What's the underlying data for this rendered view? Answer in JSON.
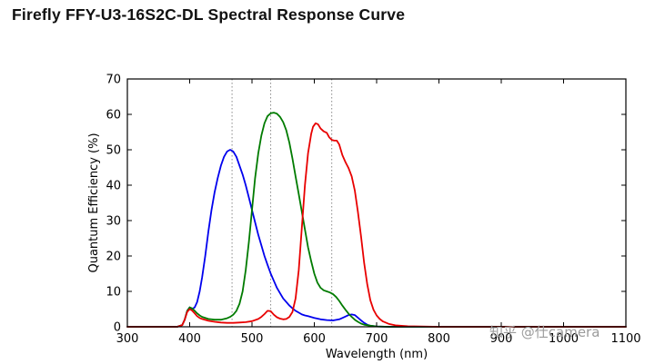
{
  "page": {
    "watermark": "知乎 @仕camera"
  },
  "chart_data": {
    "type": "line",
    "title": "Firefly FFY-U3-16S2C-DL Spectral Response Curve",
    "xlabel": "Wavelength (nm)",
    "ylabel": "Quantum Efficiency (%)",
    "xlim": [
      300,
      1100
    ],
    "ylim": [
      0,
      70
    ],
    "xticks": [
      300,
      400,
      500,
      600,
      700,
      800,
      900,
      1000,
      1100
    ],
    "yticks": [
      0,
      10,
      20,
      30,
      40,
      50,
      60,
      70
    ],
    "grid": false,
    "legend_position": "none",
    "marker_lines_x": [
      468,
      530,
      628
    ],
    "series": [
      {
        "name": "blue",
        "color": "#0000ee",
        "points": [
          [
            300,
            0
          ],
          [
            380,
            0
          ],
          [
            388,
            0.5
          ],
          [
            392,
            2
          ],
          [
            396,
            4.5
          ],
          [
            400,
            5.5
          ],
          [
            404,
            5
          ],
          [
            408,
            5.5
          ],
          [
            412,
            7
          ],
          [
            416,
            10
          ],
          [
            420,
            14
          ],
          [
            425,
            20
          ],
          [
            430,
            27
          ],
          [
            435,
            33
          ],
          [
            440,
            38
          ],
          [
            445,
            42
          ],
          [
            450,
            45.5
          ],
          [
            455,
            48
          ],
          [
            460,
            49.5
          ],
          [
            465,
            50
          ],
          [
            470,
            49.5
          ],
          [
            475,
            48
          ],
          [
            480,
            45.5
          ],
          [
            485,
            43
          ],
          [
            490,
            40
          ],
          [
            495,
            36.5
          ],
          [
            500,
            33
          ],
          [
            505,
            29.5
          ],
          [
            510,
            26
          ],
          [
            515,
            23
          ],
          [
            520,
            20
          ],
          [
            525,
            17.5
          ],
          [
            530,
            15
          ],
          [
            535,
            13
          ],
          [
            540,
            11
          ],
          [
            545,
            9.5
          ],
          [
            550,
            8
          ],
          [
            555,
            7
          ],
          [
            560,
            6
          ],
          [
            565,
            5.2
          ],
          [
            570,
            4.5
          ],
          [
            575,
            4
          ],
          [
            580,
            3.5
          ],
          [
            585,
            3.2
          ],
          [
            590,
            3
          ],
          [
            600,
            2.5
          ],
          [
            610,
            2.1
          ],
          [
            620,
            1.9
          ],
          [
            630,
            1.8
          ],
          [
            640,
            2.1
          ],
          [
            645,
            2.5
          ],
          [
            650,
            2.9
          ],
          [
            655,
            3.3
          ],
          [
            660,
            3.5
          ],
          [
            665,
            3.3
          ],
          [
            670,
            2.6
          ],
          [
            675,
            1.8
          ],
          [
            680,
            1.1
          ],
          [
            685,
            0.6
          ],
          [
            690,
            0.3
          ],
          [
            700,
            0.1
          ],
          [
            720,
            0
          ],
          [
            1100,
            0
          ]
        ]
      },
      {
        "name": "green",
        "color": "#007b00",
        "points": [
          [
            300,
            0
          ],
          [
            380,
            0
          ],
          [
            388,
            0.5
          ],
          [
            392,
            2
          ],
          [
            396,
            4.5
          ],
          [
            400,
            5.5
          ],
          [
            404,
            5.2
          ],
          [
            408,
            4.5
          ],
          [
            412,
            3.8
          ],
          [
            416,
            3.2
          ],
          [
            420,
            2.8
          ],
          [
            430,
            2.2
          ],
          [
            440,
            2
          ],
          [
            450,
            2
          ],
          [
            460,
            2.4
          ],
          [
            465,
            2.8
          ],
          [
            470,
            3.4
          ],
          [
            475,
            4.5
          ],
          [
            480,
            6.5
          ],
          [
            485,
            10
          ],
          [
            490,
            16
          ],
          [
            495,
            24
          ],
          [
            500,
            33
          ],
          [
            505,
            42
          ],
          [
            510,
            49
          ],
          [
            515,
            54
          ],
          [
            520,
            57.5
          ],
          [
            525,
            59.5
          ],
          [
            530,
            60.3
          ],
          [
            535,
            60.5
          ],
          [
            540,
            60.2
          ],
          [
            545,
            59.3
          ],
          [
            550,
            57.8
          ],
          [
            555,
            55.5
          ],
          [
            560,
            52
          ],
          [
            565,
            47.5
          ],
          [
            570,
            42.5
          ],
          [
            575,
            37.5
          ],
          [
            580,
            32.5
          ],
          [
            585,
            27.5
          ],
          [
            590,
            22.5
          ],
          [
            595,
            18.5
          ],
          [
            600,
            15
          ],
          [
            605,
            12.5
          ],
          [
            610,
            11
          ],
          [
            615,
            10.3
          ],
          [
            620,
            10
          ],
          [
            625,
            9.7
          ],
          [
            630,
            9.2
          ],
          [
            635,
            8.4
          ],
          [
            640,
            7.3
          ],
          [
            645,
            6
          ],
          [
            650,
            4.8
          ],
          [
            655,
            3.7
          ],
          [
            660,
            2.8
          ],
          [
            665,
            2
          ],
          [
            670,
            1.4
          ],
          [
            675,
            0.9
          ],
          [
            680,
            0.6
          ],
          [
            690,
            0.3
          ],
          [
            700,
            0.1
          ],
          [
            720,
            0
          ],
          [
            1100,
            0
          ]
        ]
      },
      {
        "name": "red",
        "color": "#e80000",
        "points": [
          [
            300,
            0
          ],
          [
            380,
            0
          ],
          [
            388,
            0.5
          ],
          [
            392,
            2
          ],
          [
            396,
            4.2
          ],
          [
            400,
            5
          ],
          [
            404,
            4.6
          ],
          [
            408,
            3.8
          ],
          [
            412,
            3
          ],
          [
            416,
            2.5
          ],
          [
            420,
            2.2
          ],
          [
            430,
            1.7
          ],
          [
            440,
            1.4
          ],
          [
            450,
            1.2
          ],
          [
            460,
            1.1
          ],
          [
            470,
            1.1
          ],
          [
            480,
            1.2
          ],
          [
            490,
            1.3
          ],
          [
            500,
            1.6
          ],
          [
            510,
            2.2
          ],
          [
            515,
            2.8
          ],
          [
            520,
            3.6
          ],
          [
            525,
            4.5
          ],
          [
            530,
            4.4
          ],
          [
            535,
            3.4
          ],
          [
            540,
            2.7
          ],
          [
            545,
            2.3
          ],
          [
            550,
            2.1
          ],
          [
            555,
            2.2
          ],
          [
            560,
            2.8
          ],
          [
            565,
            4.2
          ],
          [
            570,
            8
          ],
          [
            575,
            16
          ],
          [
            580,
            28
          ],
          [
            585,
            40
          ],
          [
            590,
            49
          ],
          [
            595,
            54.5
          ],
          [
            598,
            56.5
          ],
          [
            602,
            57.5
          ],
          [
            606,
            57.2
          ],
          [
            610,
            56
          ],
          [
            615,
            55.2
          ],
          [
            620,
            54.8
          ],
          [
            624,
            53.5
          ],
          [
            628,
            52.8
          ],
          [
            632,
            52.6
          ],
          [
            636,
            52.6
          ],
          [
            640,
            51.5
          ],
          [
            645,
            48.5
          ],
          [
            650,
            46.5
          ],
          [
            655,
            44.8
          ],
          [
            660,
            42.5
          ],
          [
            665,
            38.5
          ],
          [
            670,
            32.5
          ],
          [
            675,
            25.5
          ],
          [
            680,
            18
          ],
          [
            685,
            12
          ],
          [
            690,
            7.5
          ],
          [
            695,
            4.8
          ],
          [
            700,
            3.2
          ],
          [
            705,
            2.2
          ],
          [
            710,
            1.5
          ],
          [
            720,
            0.8
          ],
          [
            730,
            0.4
          ],
          [
            750,
            0.15
          ],
          [
            800,
            0
          ],
          [
            1100,
            0
          ]
        ]
      }
    ]
  }
}
